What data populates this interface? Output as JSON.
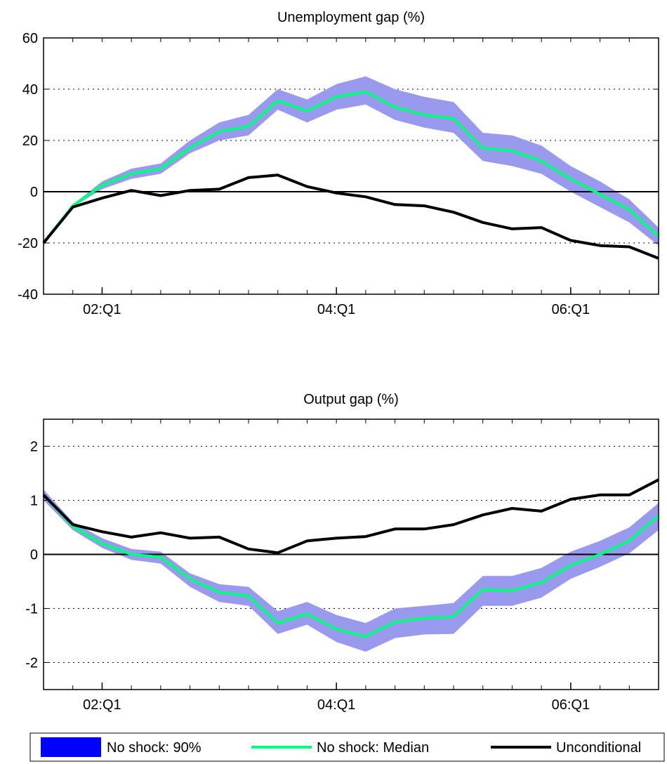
{
  "chart_data": [
    {
      "type": "line",
      "title": "Unemployment gap (%)",
      "xlabel": "",
      "ylabel": "",
      "x_start": "2001:Q3",
      "x_end": "2006:Q4",
      "x_ticks": [
        {
          "date": "2002:Q1",
          "label": "02:Q1"
        },
        {
          "date": "2004:Q1",
          "label": "04:Q1"
        },
        {
          "date": "2006:Q1",
          "label": "06:Q1"
        }
      ],
      "ylim": [
        -40,
        60
      ],
      "y_ticks": [
        -40,
        -20,
        0,
        20,
        40,
        60
      ],
      "y_tick_labels": [
        "-40",
        "-20",
        "0",
        "20",
        "40",
        "60"
      ],
      "y_grid": [
        -20,
        20,
        40
      ],
      "zero_line": true,
      "x": [
        "2001:Q3",
        "2001:Q4",
        "2002:Q1",
        "2002:Q2",
        "2002:Q3",
        "2002:Q4",
        "2003:Q1",
        "2003:Q2",
        "2003:Q3",
        "2003:Q4",
        "2004:Q1",
        "2004:Q2",
        "2004:Q3",
        "2004:Q4",
        "2005:Q1",
        "2005:Q2",
        "2005:Q3",
        "2005:Q4",
        "2006:Q1",
        "2006:Q2",
        "2006:Q3",
        "2006:Q4"
      ],
      "series": [
        {
          "name": "No shock: 90%",
          "kind": "band",
          "color": "#9999ee",
          "upper": [
            -19,
            -5,
            4,
            9,
            11,
            20,
            27,
            30,
            40,
            36,
            42,
            45,
            40,
            37,
            35,
            23,
            22,
            18,
            10,
            4,
            -3,
            -14
          ],
          "lower": [
            -21,
            -6,
            1,
            5,
            7,
            15,
            20,
            22,
            32,
            27,
            32,
            34,
            28,
            25,
            23,
            12,
            10,
            7,
            0,
            -6,
            -12,
            -21
          ]
        },
        {
          "name": "No shock: Median",
          "kind": "line",
          "color": "#00ff80",
          "values": [
            -20,
            -5.5,
            2.5,
            7,
            9,
            17,
            23.5,
            25.5,
            35.5,
            31.5,
            37,
            39,
            33,
            30,
            28.5,
            17,
            16,
            12,
            5,
            -1,
            -7,
            -17.5
          ]
        },
        {
          "name": "Unconditional",
          "kind": "line",
          "color": "#000000",
          "values": [
            -20,
            -6,
            -2.5,
            0.5,
            -1.5,
            0.5,
            1,
            5.5,
            6.5,
            2,
            -0.5,
            -2,
            -5,
            -5.5,
            -8,
            -12,
            -14.5,
            -14,
            -19,
            -21,
            -21.5,
            -26
          ]
        }
      ]
    },
    {
      "type": "line",
      "title": "Output gap (%)",
      "xlabel": "",
      "ylabel": "",
      "x_start": "2001:Q3",
      "x_end": "2006:Q4",
      "x_ticks": [
        {
          "date": "2002:Q1",
          "label": "02:Q1"
        },
        {
          "date": "2004:Q1",
          "label": "04:Q1"
        },
        {
          "date": "2006:Q1",
          "label": "06:Q1"
        }
      ],
      "ylim": [
        -2.5,
        2.5
      ],
      "y_ticks": [
        -2,
        -1,
        0,
        1,
        2
      ],
      "y_tick_labels": [
        "-2",
        "-1",
        "0",
        "1",
        "2"
      ],
      "y_grid": [
        -2,
        -1,
        1,
        2
      ],
      "zero_line": true,
      "x": [
        "2001:Q3",
        "2001:Q4",
        "2002:Q1",
        "2002:Q2",
        "2002:Q3",
        "2002:Q4",
        "2003:Q1",
        "2003:Q2",
        "2003:Q3",
        "2003:Q4",
        "2004:Q1",
        "2004:Q2",
        "2004:Q3",
        "2004:Q4",
        "2005:Q1",
        "2005:Q2",
        "2005:Q3",
        "2005:Q4",
        "2006:Q1",
        "2006:Q2",
        "2006:Q3",
        "2006:Q4"
      ],
      "series": [
        {
          "name": "No shock: 90%",
          "kind": "band",
          "color": "#9999ee",
          "upper": [
            1.2,
            0.6,
            0.3,
            0.1,
            0.05,
            -0.35,
            -0.55,
            -0.6,
            -1.05,
            -0.88,
            -1.12,
            -1.27,
            -1.0,
            -0.95,
            -0.9,
            -0.4,
            -0.4,
            -0.25,
            0.05,
            0.25,
            0.5,
            0.95
          ],
          "lower": [
            1.0,
            0.45,
            0.12,
            -0.1,
            -0.17,
            -0.6,
            -0.88,
            -0.95,
            -1.47,
            -1.3,
            -1.62,
            -1.8,
            -1.55,
            -1.48,
            -1.47,
            -0.95,
            -0.95,
            -0.8,
            -0.45,
            -0.23,
            0.02,
            0.45
          ]
        },
        {
          "name": "No shock: Median",
          "kind": "line",
          "color": "#00ff80",
          "values": [
            1.1,
            0.52,
            0.2,
            0.0,
            -0.05,
            -0.45,
            -0.7,
            -0.77,
            -1.27,
            -1.1,
            -1.38,
            -1.52,
            -1.25,
            -1.18,
            -1.15,
            -0.65,
            -0.67,
            -0.52,
            -0.2,
            0.0,
            0.25,
            0.72
          ]
        },
        {
          "name": "Unconditional",
          "kind": "line",
          "color": "#000000",
          "values": [
            1.1,
            0.55,
            0.42,
            0.32,
            0.4,
            0.3,
            0.32,
            0.1,
            0.03,
            0.25,
            0.3,
            0.33,
            0.47,
            0.47,
            0.55,
            0.73,
            0.85,
            0.8,
            1.02,
            1.1,
            1.1,
            1.38
          ]
        }
      ]
    }
  ],
  "legend": {
    "placement": "bottom",
    "items": [
      {
        "label": "No shock: 90%",
        "kind": "patch",
        "color": "#0000ff"
      },
      {
        "label": "No shock: Median",
        "kind": "line",
        "color": "#00ff80"
      },
      {
        "label": "Unconditional",
        "kind": "line",
        "color": "#000000"
      }
    ]
  }
}
